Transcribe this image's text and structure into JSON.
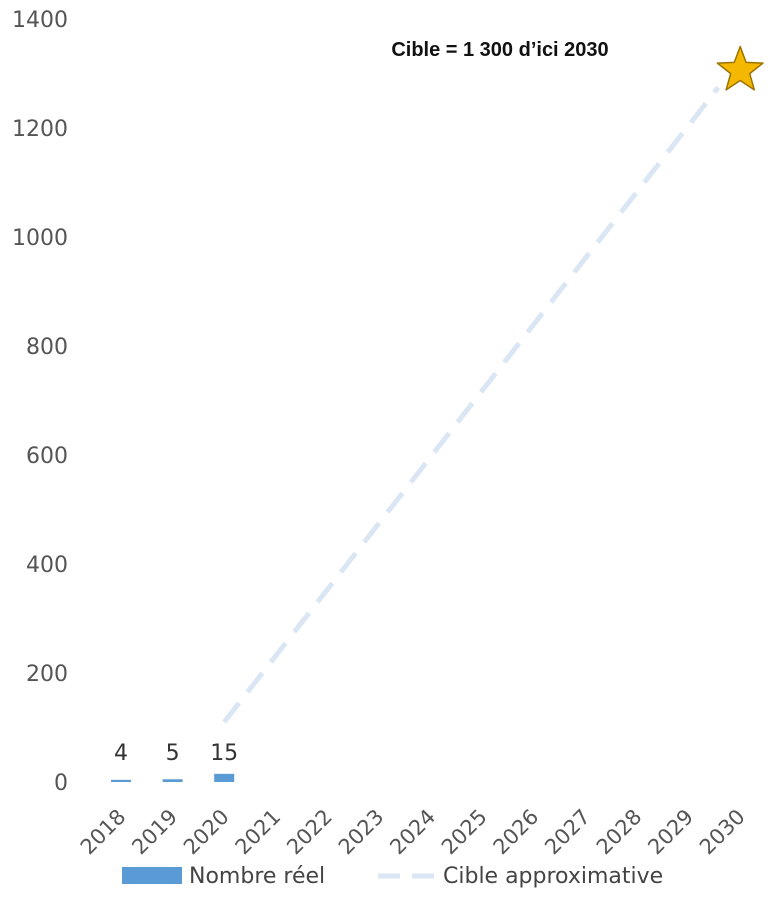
{
  "chart_data": {
    "type": "bar",
    "title": "",
    "xlabel": "",
    "ylabel": "",
    "categories": [
      "2018",
      "2019",
      "2020",
      "2021",
      "2022",
      "2023",
      "2024",
      "2025",
      "2026",
      "2027",
      "2028",
      "2029",
      "2030"
    ],
    "ylim": [
      0,
      1400
    ],
    "yticks": [
      "0",
      "200",
      "400",
      "600",
      "800",
      "1000",
      "1200",
      "1400"
    ],
    "grid": false,
    "legend_position": "bottom",
    "series": [
      {
        "name": "Nombre réel",
        "type": "bar",
        "color": "#5b9bd5",
        "values": [
          4,
          5,
          15,
          null,
          null,
          null,
          null,
          null,
          null,
          null,
          null,
          null,
          null
        ],
        "data_labels": [
          "4",
          "5",
          "15"
        ]
      },
      {
        "name": "Cible approximative",
        "type": "line",
        "style": "dashed",
        "color": "#dae6f4",
        "points": [
          {
            "x": "2020",
            "y": 110
          },
          {
            "x": "2030",
            "y": 1300
          }
        ]
      }
    ],
    "annotation": {
      "text": "Cible = 1 300 d’ici 2030",
      "marker": "star-icon",
      "marker_x": "2030",
      "marker_y": 1300,
      "marker_fill": "#f5b800",
      "marker_stroke": "#9c7300"
    }
  }
}
